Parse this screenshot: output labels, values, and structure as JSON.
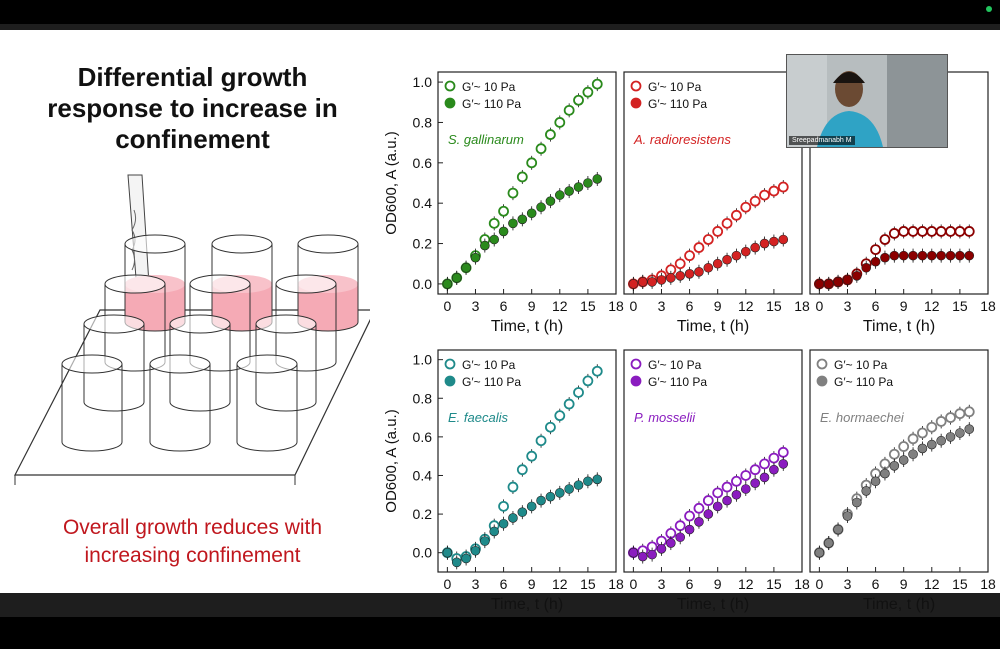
{
  "slide": {
    "title": "Differential growth response to increase in confinement",
    "subtitle": "Overall growth reduces with increasing confinement"
  },
  "video": {
    "participant_name": "Sreepadmanabh M"
  },
  "chart_data": [
    {
      "type": "scatter",
      "species": "S. gallinarum",
      "color": "#2a8a1c",
      "ylabel": "OD600, A (a.u.)",
      "xlabel": "Time, t (h)",
      "xlim": [
        -1,
        18
      ],
      "ylim": [
        -0.05,
        1.05
      ],
      "xticks": [
        0,
        3,
        6,
        9,
        12,
        15,
        18
      ],
      "yticks": [
        0.0,
        0.2,
        0.4,
        0.6,
        0.8,
        1.0
      ],
      "legend": [
        "G′~ 10 Pa",
        "G′~ 110 Pa"
      ],
      "series": [
        {
          "name": "G′~ 10 Pa",
          "open": true,
          "x": [
            0,
            1,
            2,
            3,
            4,
            5,
            6,
            7,
            8,
            9,
            10,
            11,
            12,
            13,
            14,
            15,
            16
          ],
          "y": [
            0.0,
            0.03,
            0.08,
            0.14,
            0.22,
            0.3,
            0.36,
            0.45,
            0.53,
            0.6,
            0.67,
            0.74,
            0.8,
            0.86,
            0.91,
            0.95,
            0.99
          ]
        },
        {
          "name": "G′~ 110 Pa",
          "open": false,
          "x": [
            0,
            1,
            2,
            3,
            4,
            5,
            6,
            7,
            8,
            9,
            10,
            11,
            12,
            13,
            14,
            15,
            16
          ],
          "y": [
            0.0,
            0.03,
            0.08,
            0.13,
            0.19,
            0.22,
            0.26,
            0.3,
            0.32,
            0.35,
            0.38,
            0.41,
            0.44,
            0.46,
            0.48,
            0.5,
            0.52
          ]
        }
      ]
    },
    {
      "type": "scatter",
      "species": "A. radioresistens",
      "color": "#d32222",
      "ylabel": "",
      "xlabel": "Time, t (h)",
      "xlim": [
        -1,
        18
      ],
      "ylim": [
        -0.05,
        1.05
      ],
      "xticks": [
        0,
        3,
        6,
        9,
        12,
        15,
        18
      ],
      "yticks": [],
      "legend": [
        "G′~ 10 Pa",
        "G′~ 110 Pa"
      ],
      "series": [
        {
          "name": "G′~ 10 Pa",
          "open": true,
          "x": [
            0,
            1,
            2,
            3,
            4,
            5,
            6,
            7,
            8,
            9,
            10,
            11,
            12,
            13,
            14,
            15,
            16
          ],
          "y": [
            0.0,
            0.01,
            0.02,
            0.04,
            0.07,
            0.1,
            0.14,
            0.18,
            0.22,
            0.26,
            0.3,
            0.34,
            0.38,
            0.41,
            0.44,
            0.46,
            0.48
          ]
        },
        {
          "name": "G′~ 110 Pa",
          "open": false,
          "x": [
            0,
            1,
            2,
            3,
            4,
            5,
            6,
            7,
            8,
            9,
            10,
            11,
            12,
            13,
            14,
            15,
            16
          ],
          "y": [
            0.0,
            0.01,
            0.01,
            0.02,
            0.03,
            0.04,
            0.05,
            0.06,
            0.08,
            0.1,
            0.12,
            0.14,
            0.16,
            0.18,
            0.2,
            0.21,
            0.22
          ]
        }
      ]
    },
    {
      "type": "scatter",
      "species": "",
      "color": "#8b0000",
      "ylabel": "",
      "xlabel": "Time, t (h)",
      "xlim": [
        -1,
        18
      ],
      "ylim": [
        -0.05,
        1.05
      ],
      "xticks": [
        0,
        3,
        6,
        9,
        12,
        15,
        18
      ],
      "yticks": [],
      "legend": [],
      "series": [
        {
          "name": "",
          "open": true,
          "x": [
            0,
            1,
            2,
            3,
            4,
            5,
            6,
            7,
            8,
            9,
            10,
            11,
            12,
            13,
            14,
            15,
            16
          ],
          "y": [
            0.0,
            0.0,
            0.01,
            0.02,
            0.05,
            0.1,
            0.17,
            0.22,
            0.25,
            0.26,
            0.26,
            0.26,
            0.26,
            0.26,
            0.26,
            0.26,
            0.26
          ]
        },
        {
          "name": "",
          "open": false,
          "x": [
            0,
            1,
            2,
            3,
            4,
            5,
            6,
            7,
            8,
            9,
            10,
            11,
            12,
            13,
            14,
            15,
            16
          ],
          "y": [
            0.0,
            0.0,
            0.01,
            0.02,
            0.04,
            0.08,
            0.11,
            0.13,
            0.14,
            0.14,
            0.14,
            0.14,
            0.14,
            0.14,
            0.14,
            0.14,
            0.14
          ]
        }
      ]
    },
    {
      "type": "scatter",
      "species": "E. faecalis",
      "color": "#1f8a8a",
      "ylabel": "OD600, A (a.u.)",
      "xlabel": "Time, t (h)",
      "xlim": [
        -1,
        18
      ],
      "ylim": [
        -0.1,
        1.05
      ],
      "xticks": [
        0,
        3,
        6,
        9,
        12,
        15,
        18
      ],
      "yticks": [
        0.0,
        0.2,
        0.4,
        0.6,
        0.8,
        1.0
      ],
      "legend": [
        "G′~ 10 Pa",
        "G′~ 110 Pa"
      ],
      "series": [
        {
          "name": "G′~ 10 Pa",
          "open": true,
          "x": [
            0,
            1,
            2,
            3,
            4,
            5,
            6,
            7,
            8,
            9,
            10,
            11,
            12,
            13,
            14,
            15,
            16
          ],
          "y": [
            0.0,
            -0.03,
            -0.02,
            0.02,
            0.07,
            0.14,
            0.24,
            0.34,
            0.43,
            0.5,
            0.58,
            0.65,
            0.71,
            0.77,
            0.83,
            0.89,
            0.94
          ]
        },
        {
          "name": "G′~ 110 Pa",
          "open": false,
          "x": [
            0,
            1,
            2,
            3,
            4,
            5,
            6,
            7,
            8,
            9,
            10,
            11,
            12,
            13,
            14,
            15,
            16
          ],
          "y": [
            0.0,
            -0.05,
            -0.03,
            0.01,
            0.06,
            0.11,
            0.15,
            0.18,
            0.21,
            0.24,
            0.27,
            0.29,
            0.31,
            0.33,
            0.35,
            0.37,
            0.38
          ]
        }
      ]
    },
    {
      "type": "scatter",
      "species": "P. mosselii",
      "color": "#8a1cbf",
      "ylabel": "",
      "xlabel": "Time, t (h)",
      "xlim": [
        -1,
        18
      ],
      "ylim": [
        -0.1,
        1.05
      ],
      "xticks": [
        0,
        3,
        6,
        9,
        12,
        15,
        18
      ],
      "yticks": [],
      "legend": [
        "G′~ 10 Pa",
        "G′~ 110 Pa"
      ],
      "series": [
        {
          "name": "G′~ 10 Pa",
          "open": true,
          "x": [
            0,
            1,
            2,
            3,
            4,
            5,
            6,
            7,
            8,
            9,
            10,
            11,
            12,
            13,
            14,
            15,
            16
          ],
          "y": [
            0.0,
            0.01,
            0.03,
            0.06,
            0.1,
            0.14,
            0.19,
            0.23,
            0.27,
            0.31,
            0.34,
            0.37,
            0.4,
            0.43,
            0.46,
            0.49,
            0.52
          ]
        },
        {
          "name": "G′~ 110 Pa",
          "open": false,
          "x": [
            0,
            1,
            2,
            3,
            4,
            5,
            6,
            7,
            8,
            9,
            10,
            11,
            12,
            13,
            14,
            15,
            16
          ],
          "y": [
            0.0,
            -0.02,
            -0.01,
            0.02,
            0.05,
            0.08,
            0.12,
            0.16,
            0.2,
            0.24,
            0.27,
            0.3,
            0.33,
            0.36,
            0.39,
            0.43,
            0.46
          ]
        }
      ]
    },
    {
      "type": "scatter",
      "species": "E. hormaechei",
      "color": "#808080",
      "ylabel": "",
      "xlabel": "Time, t (h)",
      "xlim": [
        -1,
        18
      ],
      "ylim": [
        -0.1,
        1.05
      ],
      "xticks": [
        0,
        3,
        6,
        9,
        12,
        15,
        18
      ],
      "yticks": [],
      "legend": [
        "G′~ 10 Pa",
        "G′~ 110 Pa"
      ],
      "series": [
        {
          "name": "G′~ 10 Pa",
          "open": true,
          "x": [
            0,
            1,
            2,
            3,
            4,
            5,
            6,
            7,
            8,
            9,
            10,
            11,
            12,
            13,
            14,
            15,
            16
          ],
          "y": [
            0.0,
            0.05,
            0.12,
            0.2,
            0.28,
            0.35,
            0.41,
            0.46,
            0.51,
            0.55,
            0.59,
            0.62,
            0.65,
            0.68,
            0.7,
            0.72,
            0.73
          ]
        },
        {
          "name": "G′~ 110 Pa",
          "open": false,
          "x": [
            0,
            1,
            2,
            3,
            4,
            5,
            6,
            7,
            8,
            9,
            10,
            11,
            12,
            13,
            14,
            15,
            16
          ],
          "y": [
            0.0,
            0.05,
            0.12,
            0.19,
            0.26,
            0.32,
            0.37,
            0.41,
            0.45,
            0.48,
            0.51,
            0.54,
            0.56,
            0.58,
            0.6,
            0.62,
            0.64
          ]
        }
      ]
    }
  ]
}
